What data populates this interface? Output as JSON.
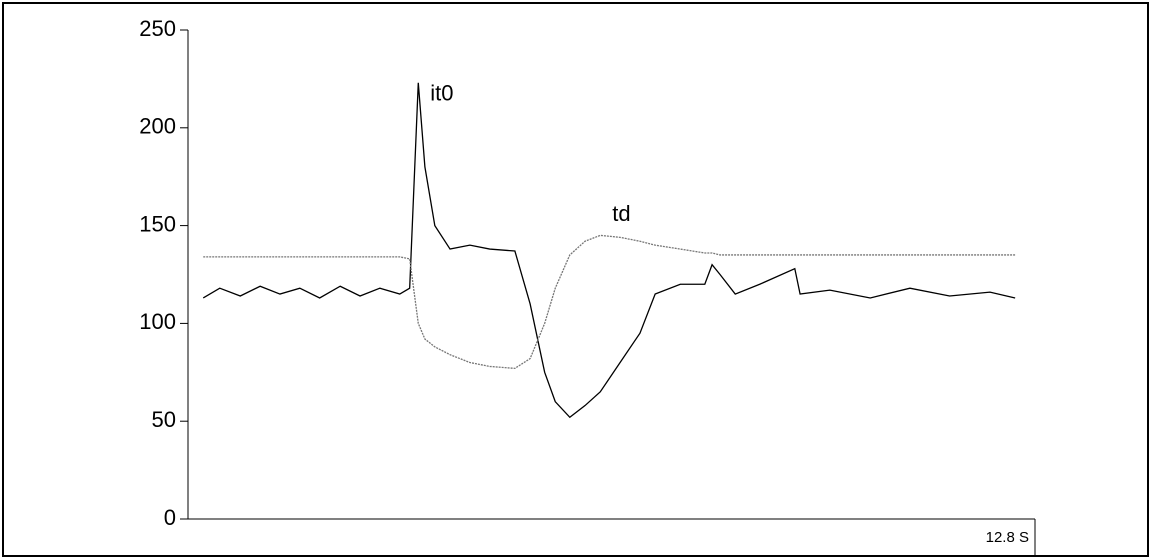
{
  "chart_data": {
    "type": "line",
    "x": [
      0.23,
      0.48,
      0.79,
      1.09,
      1.39,
      1.69,
      1.99,
      2.3,
      2.6,
      2.9,
      3.2,
      3.35,
      3.48,
      3.58,
      3.73,
      3.96,
      4.26,
      4.56,
      4.94,
      5.17,
      5.39,
      5.55,
      5.77,
      6.0,
      6.23,
      6.53,
      6.83,
      7.06,
      7.44,
      7.81,
      7.92,
      8.04,
      8.27,
      8.64,
      9.17,
      9.25,
      9.7,
      10.31,
      10.91,
      11.51,
      12.12,
      12.5
    ],
    "series": [
      {
        "name": "it0",
        "color": "#000000",
        "values": [
          113,
          118,
          114,
          119,
          115,
          118,
          113,
          119,
          114,
          118,
          115,
          118,
          223,
          180,
          150,
          138,
          140,
          138,
          137,
          110,
          75,
          60,
          52,
          58,
          65,
          80,
          95,
          115,
          120,
          120,
          130,
          125,
          115,
          120,
          128,
          115,
          117,
          113,
          118,
          114,
          116,
          113
        ]
      },
      {
        "name": "td",
        "color": "#777777",
        "values": [
          134,
          134,
          134,
          134,
          134,
          134,
          134,
          134,
          134,
          134,
          134,
          133,
          100,
          92,
          88,
          84,
          80,
          78,
          77,
          82,
          100,
          118,
          135,
          142,
          145,
          144,
          142,
          140,
          138,
          136,
          136,
          135,
          135,
          135,
          135,
          135,
          135,
          135,
          135,
          135,
          135,
          135
        ]
      }
    ],
    "xlim": [
      0,
      12.8
    ],
    "xticks": [
      {
        "value": 12.8,
        "label": "12.8 S"
      }
    ],
    "ylim": [
      0,
      250
    ],
    "yticks": [
      0,
      50,
      100,
      150,
      200,
      250
    ]
  }
}
